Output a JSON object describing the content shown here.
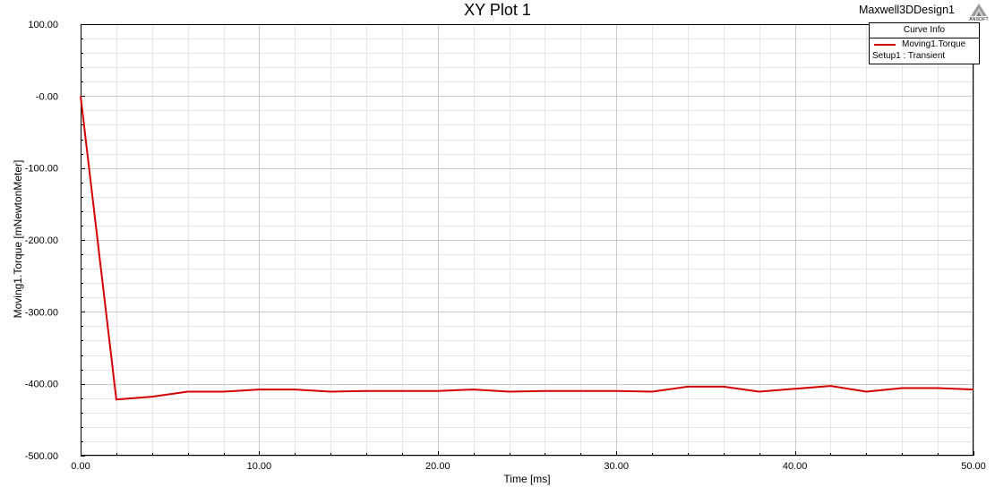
{
  "header": {
    "title": "XY Plot 1",
    "design_name": "Maxwell3DDesign1",
    "logo_text": "ANSOFT"
  },
  "legend": {
    "header": "Curve Info",
    "series_name": "Moving1.Torque",
    "setup": "Setup1 : Transient"
  },
  "colors": {
    "series": "#d40000",
    "grid_major": "#c8c8c8",
    "grid_minor": "#e6e6e6"
  },
  "chart_data": {
    "type": "line",
    "title": "XY Plot 1",
    "xlabel": "Time [ms]",
    "ylabel": "Moving1.Torque [mNewtonMeter]",
    "xlim": [
      0,
      50
    ],
    "ylim": [
      -500,
      100
    ],
    "x_ticks": [
      0,
      10,
      20,
      30,
      40,
      50
    ],
    "x_tick_labels": [
      "0.00",
      "10.00",
      "20.00",
      "30.00",
      "40.00",
      "50.00"
    ],
    "y_ticks": [
      100,
      0,
      -100,
      -200,
      -300,
      -400,
      -500
    ],
    "y_tick_labels": [
      "100.00",
      "-0.00",
      "-100.00",
      "-200.00",
      "-300.00",
      "-400.00",
      "-500.00"
    ],
    "grid": true,
    "legend_position": "top-right",
    "series": [
      {
        "name": "Moving1.Torque",
        "x": [
          0,
          2,
          4,
          6,
          8,
          10,
          12,
          14,
          16,
          18,
          20,
          22,
          24,
          26,
          28,
          30,
          32,
          34,
          36,
          38,
          40,
          42,
          44,
          46,
          48,
          50
        ],
        "y": [
          0,
          -422,
          -418,
          -411,
          -411,
          -408,
          -408,
          -411,
          -410,
          -410,
          -410,
          -408,
          -411,
          -410,
          -410,
          -410,
          -411,
          -404,
          -404,
          -411,
          -407,
          -403,
          -411,
          -406,
          -406,
          -408
        ]
      }
    ]
  }
}
